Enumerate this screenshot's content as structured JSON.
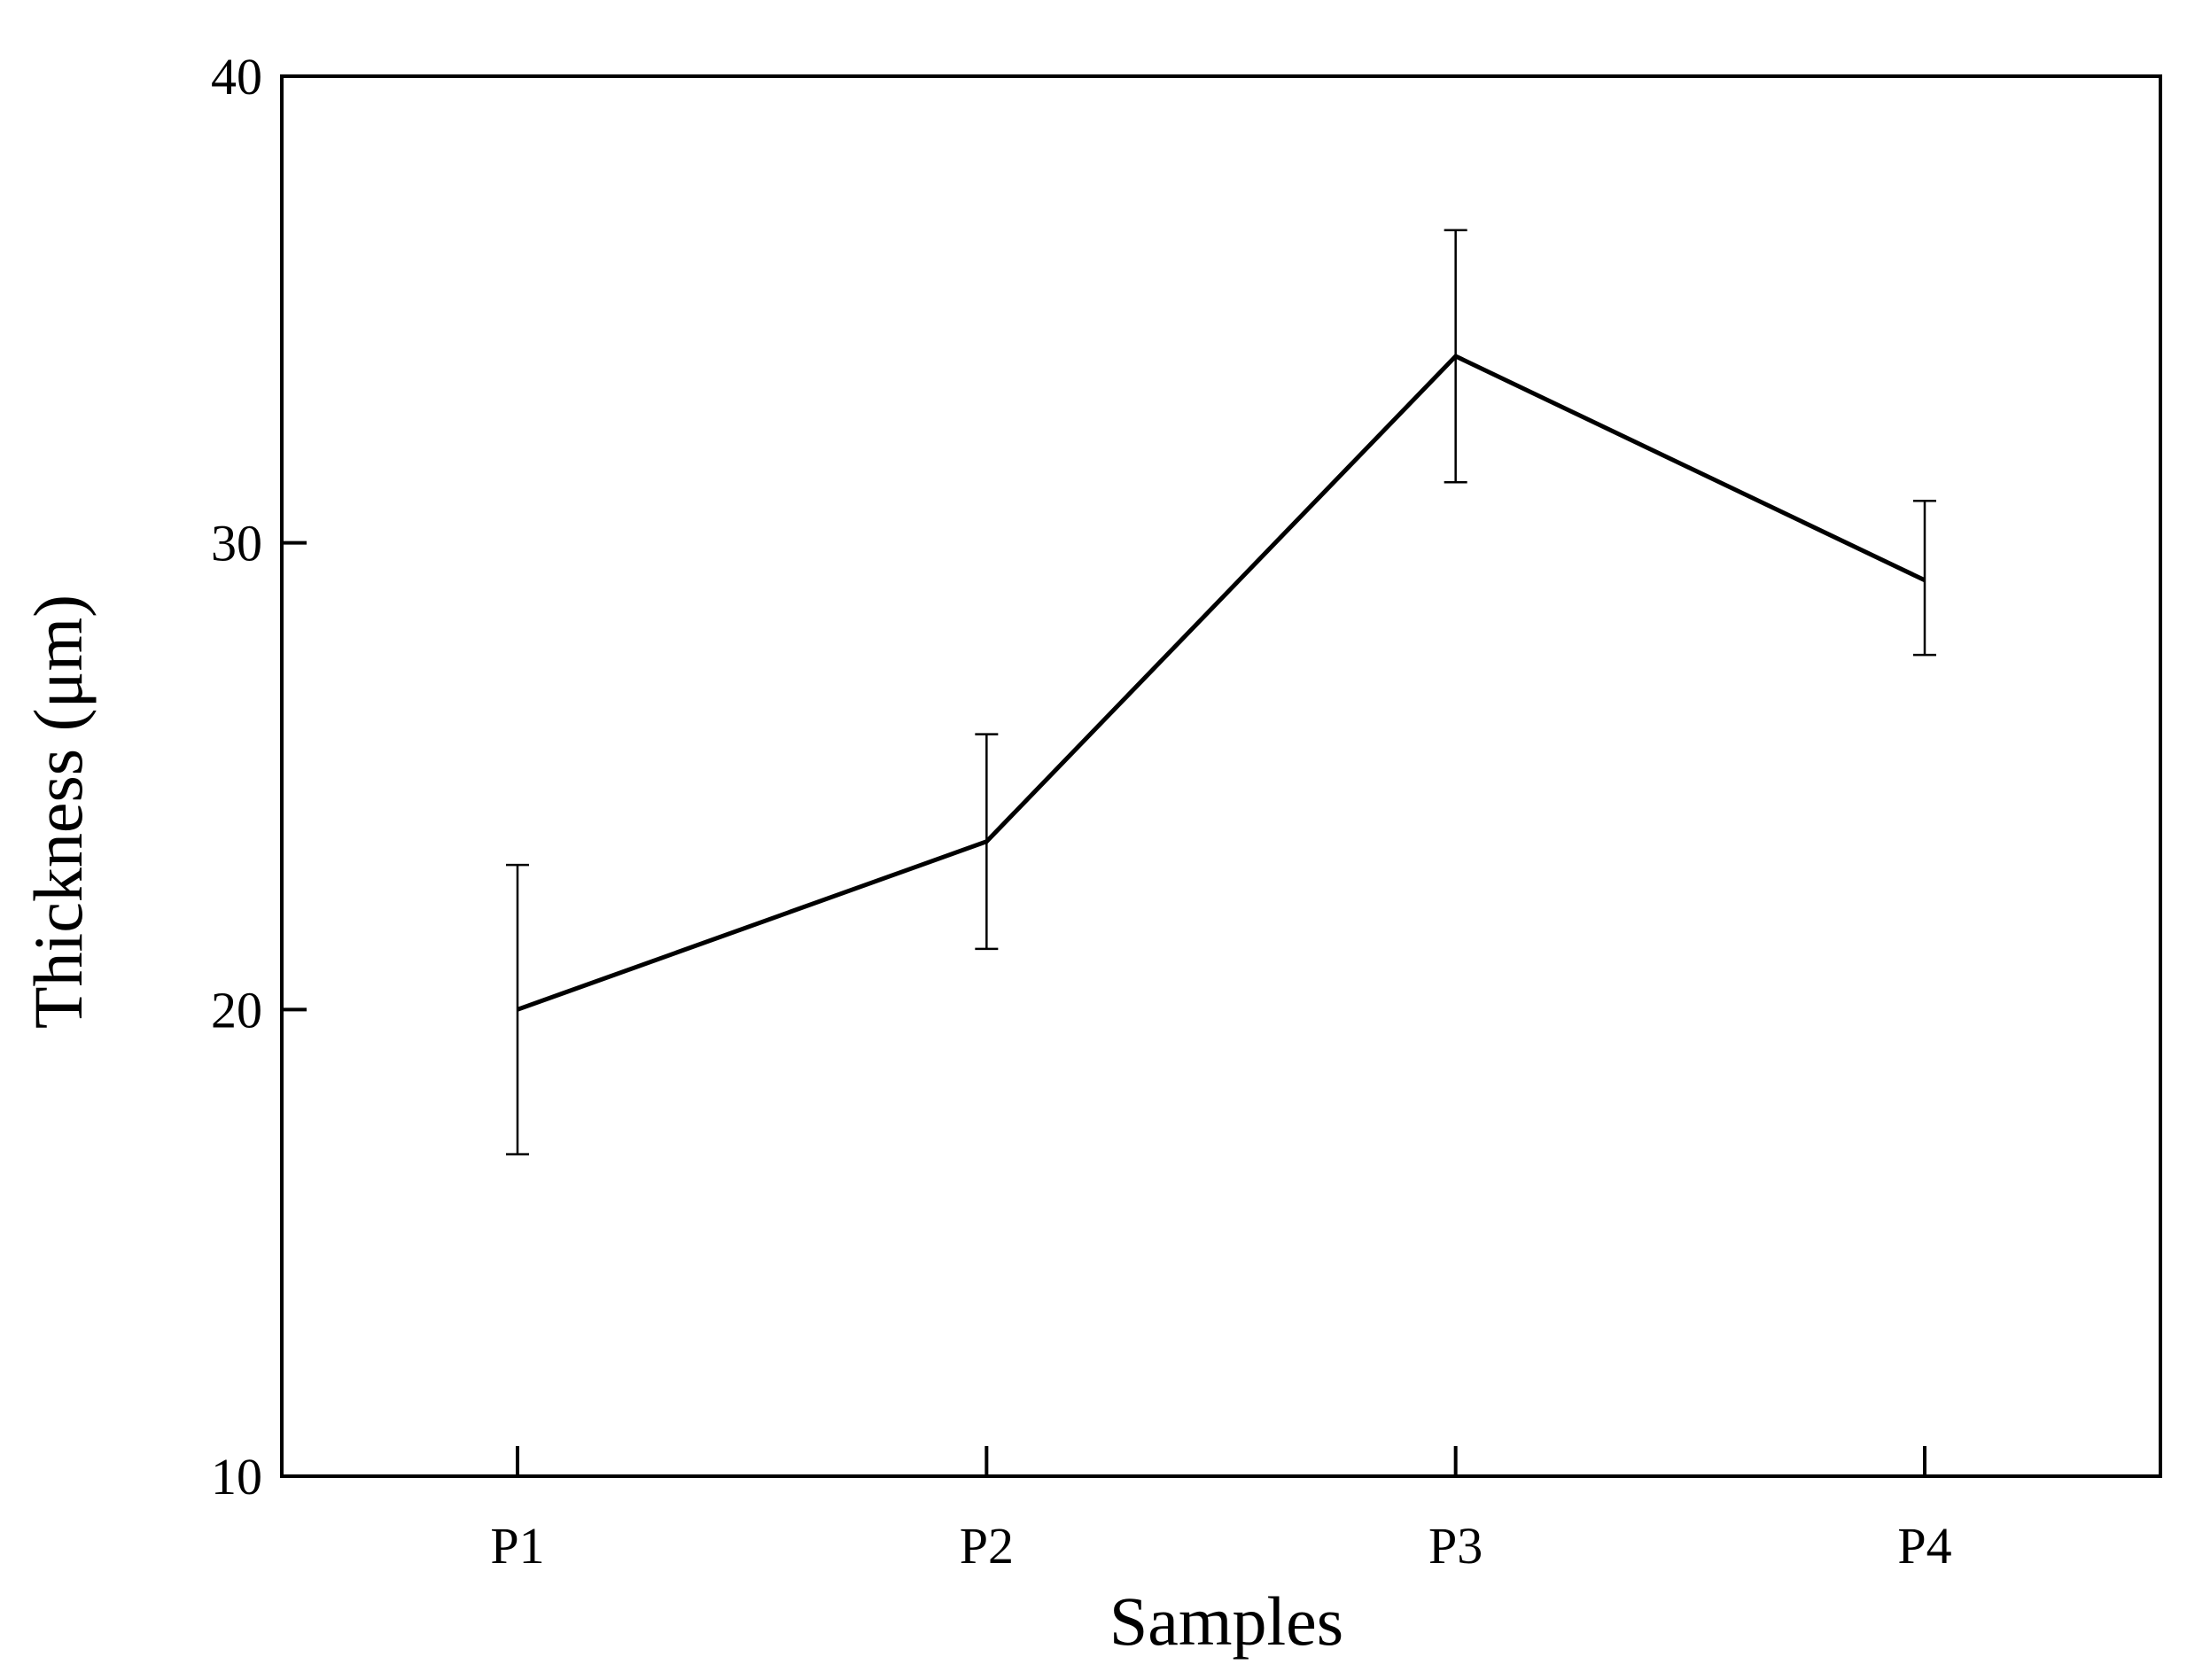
{
  "chart_data": {
    "type": "line",
    "title": "",
    "xlabel": "Samples",
    "ylabel": "Thickness (μm)",
    "categories": [
      "P1",
      "P2",
      "P3",
      "P4"
    ],
    "ylim": [
      10,
      40
    ],
    "yticks": [
      10,
      20,
      30,
      40
    ],
    "grid": false,
    "legend": "none",
    "series": [
      {
        "values": [
          20.0,
          23.6,
          34.0,
          29.2
        ],
        "error_upper": [
          23.1,
          25.9,
          36.7,
          30.9
        ],
        "error_lower": [
          16.9,
          21.3,
          31.3,
          27.6
        ]
      }
    ],
    "colors": {
      "line": "#000000",
      "axis": "#000000"
    }
  }
}
